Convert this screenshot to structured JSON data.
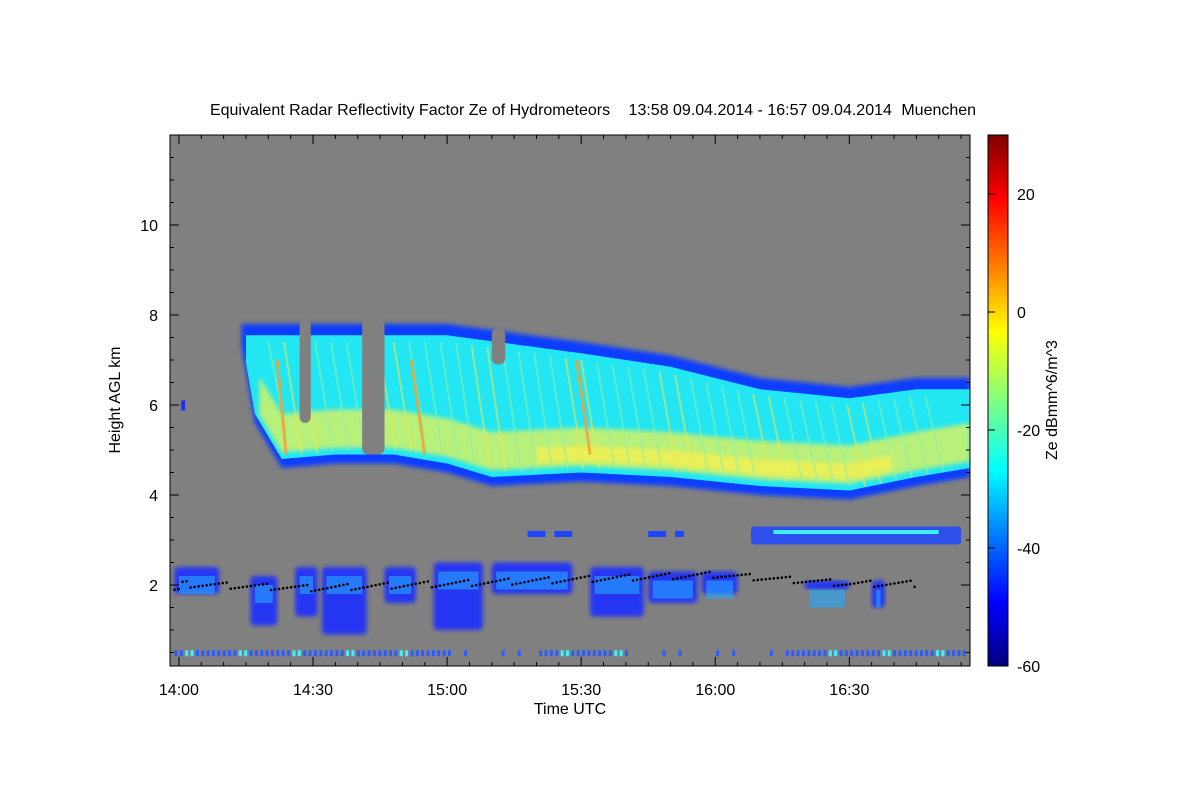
{
  "chart_data": {
    "type": "heatmap",
    "title": "Equivalent Radar Reflectivity Factor Ze of Hydrometeors",
    "time_range": "13:58 09.04.2014 - 16:57 09.04.2014",
    "location": "Muenchen",
    "xlabel": "Time UTC",
    "ylabel": "Height AGL km",
    "x_ticks": [
      "14:00",
      "14:30",
      "15:00",
      "15:30",
      "16:00",
      "16:30"
    ],
    "x_tick_minutes": [
      0,
      30,
      60,
      90,
      120,
      150
    ],
    "xlim_minutes": [
      -2,
      177
    ],
    "y_ticks": [
      2,
      4,
      6,
      8,
      10
    ],
    "ylim": [
      0.2,
      12
    ],
    "colorbar": {
      "label": "Ze dBmm^6/m^3",
      "ticks": [
        20,
        0,
        -20,
        -40,
        -60
      ],
      "range": [
        -60,
        30
      ],
      "colormap": [
        "#00007f",
        "#0000ff",
        "#0080ff",
        "#00ffff",
        "#80ff80",
        "#ffff00",
        "#ff8000",
        "#ff0000",
        "#7f0000"
      ]
    },
    "background_color": "#808080",
    "main_cloud_layer": {
      "start_minute": 14,
      "end_minute": 177,
      "base_km": [
        [
          14,
          7.3
        ],
        [
          17,
          5.6
        ],
        [
          23,
          4.6
        ],
        [
          35,
          4.7
        ],
        [
          48,
          4.7
        ],
        [
          60,
          4.5
        ],
        [
          70,
          4.2
        ],
        [
          90,
          4.3
        ],
        [
          110,
          4.2
        ],
        [
          130,
          4.0
        ],
        [
          150,
          3.9
        ],
        [
          165,
          4.2
        ],
        [
          177,
          4.4
        ]
      ],
      "top_km": [
        [
          14,
          7.8
        ],
        [
          25,
          7.8
        ],
        [
          35,
          7.8
        ],
        [
          48,
          7.8
        ],
        [
          60,
          7.8
        ],
        [
          75,
          7.6
        ],
        [
          90,
          7.4
        ],
        [
          110,
          7.1
        ],
        [
          130,
          6.6
        ],
        [
          150,
          6.4
        ],
        [
          165,
          6.6
        ],
        [
          177,
          6.6
        ]
      ]
    },
    "low_cloud_layer": {
      "start_minute": -2,
      "end_minute": 165,
      "base_km": 1.2,
      "top_km": 2.5
    },
    "melting_layer_km": [
      [
        -2,
        2.0
      ],
      [
        30,
        1.9
      ],
      [
        60,
        2.0
      ],
      [
        90,
        2.1
      ],
      [
        120,
        2.2
      ],
      [
        150,
        2.0
      ],
      [
        165,
        2.0
      ]
    ],
    "mid_layer": {
      "start_minute": 128,
      "end_minute": 175,
      "base_km": 2.9,
      "top_km": 3.3
    },
    "ground_clutter_km": 0.4
  }
}
